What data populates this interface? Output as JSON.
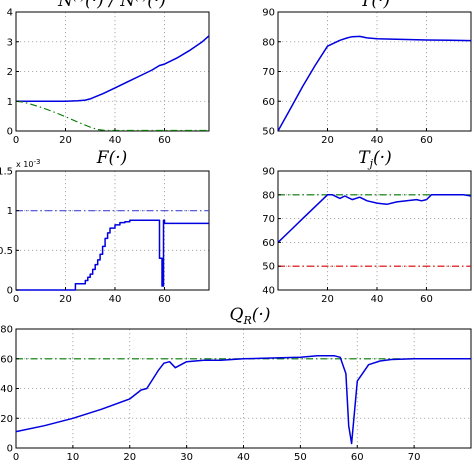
{
  "chart_data": [
    {
      "id": "p1",
      "type": "line",
      "title": "N^{(·)}(·)/N^{(·)}(·)",
      "xlim": [
        0,
        78
      ],
      "ylim": [
        0,
        4
      ],
      "xticks": [
        0,
        20,
        40,
        60
      ],
      "yticks": [
        0,
        1,
        2,
        3,
        4
      ],
      "xticklabels": [
        "0",
        "20",
        "40",
        "60"
      ],
      "yticklabels": [
        "0",
        "1",
        "2",
        "3",
        "4"
      ],
      "grid": true,
      "series": [
        {
          "color": "#0000e0",
          "style": "solid",
          "x": [
            0,
            5,
            10,
            15,
            20,
            25,
            28,
            30,
            32,
            35,
            40,
            50,
            55,
            58,
            60,
            65,
            70,
            75,
            78
          ],
          "y": [
            1.0,
            1.0,
            1.0,
            1.0,
            1.0,
            1.02,
            1.04,
            1.08,
            1.15,
            1.25,
            1.45,
            1.85,
            2.05,
            2.2,
            2.25,
            2.45,
            2.7,
            2.98,
            3.2
          ]
        },
        {
          "color": "#007a00",
          "style": "dashdot",
          "x": [
            0,
            3,
            6,
            10,
            15,
            20,
            25,
            30,
            33,
            36,
            40,
            50,
            60,
            70,
            78
          ],
          "y": [
            1.0,
            0.97,
            0.9,
            0.8,
            0.65,
            0.48,
            0.3,
            0.13,
            0.05,
            0.02,
            0.02,
            0.02,
            0.02,
            0.02,
            0.02
          ]
        }
      ]
    },
    {
      "id": "p2",
      "type": "line",
      "title": "T(·)",
      "xlim": [
        0,
        78
      ],
      "ylim": [
        50,
        90
      ],
      "xticks": [
        20,
        40,
        60
      ],
      "yticks": [
        50,
        60,
        70,
        80,
        90
      ],
      "xticklabels": [
        "20",
        "40",
        "60"
      ],
      "yticklabels": [
        "50",
        "60",
        "70",
        "80",
        "90"
      ],
      "grid": true,
      "series": [
        {
          "color": "#0000e0",
          "style": "solid",
          "x": [
            0,
            5,
            10,
            15,
            20,
            25,
            28,
            30,
            33,
            36,
            40,
            50,
            60,
            70,
            78
          ],
          "y": [
            50,
            57.5,
            65,
            72,
            78.5,
            80.5,
            81.3,
            81.7,
            81.8,
            81.3,
            81.0,
            80.8,
            80.6,
            80.5,
            80.4
          ]
        }
      ]
    },
    {
      "id": "p3",
      "type": "line",
      "title": "F(·)",
      "exponent_label": "x 10^-3",
      "xlim": [
        0,
        78
      ],
      "ylim": [
        0,
        1.5
      ],
      "xticks": [
        0,
        20,
        40,
        60
      ],
      "yticks": [
        0,
        0.5,
        1,
        1.5
      ],
      "xticklabels": [
        "0",
        "20",
        "40",
        "60"
      ],
      "yticklabels": [
        "0",
        "0.5",
        "1",
        "1.5"
      ],
      "grid": true,
      "series": [
        {
          "color": "#4b4bd6",
          "style": "dashdot",
          "x": [
            0,
            78
          ],
          "y": [
            1.0,
            1.0
          ]
        },
        {
          "color": "#0000e0",
          "style": "solid",
          "x": [
            0,
            24,
            24,
            28,
            28,
            29,
            29,
            30,
            30,
            31,
            31,
            32,
            32,
            33,
            33,
            34,
            34,
            35,
            35,
            36,
            36,
            37,
            37,
            38,
            38,
            40,
            40,
            42,
            42,
            44,
            44,
            46,
            46,
            58,
            58,
            59,
            59,
            59.6,
            59.6,
            60,
            60,
            62,
            62,
            78
          ],
          "y": [
            0,
            0,
            0.08,
            0.08,
            0.12,
            0.12,
            0.16,
            0.16,
            0.2,
            0.2,
            0.26,
            0.26,
            0.32,
            0.32,
            0.38,
            0.38,
            0.45,
            0.45,
            0.55,
            0.55,
            0.65,
            0.65,
            0.72,
            0.72,
            0.78,
            0.78,
            0.82,
            0.82,
            0.85,
            0.85,
            0.86,
            0.86,
            0.88,
            0.88,
            0.4,
            0.4,
            0.05,
            0.05,
            0.88,
            0.88,
            0.84,
            0.84,
            0.84,
            0.84
          ]
        }
      ]
    },
    {
      "id": "p4",
      "type": "line",
      "title": "T_j(·)",
      "xlim": [
        0,
        78
      ],
      "ylim": [
        40,
        90
      ],
      "xticks": [
        20,
        40,
        60
      ],
      "yticks": [
        40,
        50,
        60,
        70,
        80,
        90
      ],
      "xticklabels": [
        "20",
        "40",
        "60"
      ],
      "yticklabels": [
        "40",
        "50",
        "60",
        "70",
        "80",
        "90"
      ],
      "grid": true,
      "series": [
        {
          "color": "#007a00",
          "style": "dashdot",
          "x": [
            0,
            78
          ],
          "y": [
            80,
            80
          ]
        },
        {
          "color": "#e00000",
          "style": "dashdot",
          "x": [
            0,
            78
          ],
          "y": [
            50,
            50
          ]
        },
        {
          "color": "#0000e0",
          "style": "solid",
          "x": [
            0,
            5,
            10,
            15,
            20,
            22,
            25,
            27,
            30,
            33,
            36,
            40,
            44,
            48,
            52,
            56,
            58,
            60,
            62,
            66,
            70,
            75,
            78
          ],
          "y": [
            60,
            65,
            70,
            75,
            80,
            80,
            78.5,
            79.5,
            78,
            79,
            77.5,
            76.5,
            76,
            77,
            77.5,
            78,
            77.5,
            78,
            80,
            80,
            80,
            80,
            79.5
          ]
        }
      ]
    },
    {
      "id": "p5",
      "type": "line",
      "title": "Q_R(·)",
      "xlim": [
        0,
        80
      ],
      "ylim": [
        0,
        80
      ],
      "xticks": [
        0,
        10,
        20,
        30,
        40,
        50,
        60,
        70
      ],
      "yticks": [
        0,
        20,
        40,
        60,
        80
      ],
      "xticklabels": [
        "0",
        "10",
        "20",
        "30",
        "40",
        "50",
        "60",
        "70"
      ],
      "yticklabels": [
        "0",
        "20",
        "40",
        "60",
        "80"
      ],
      "grid": true,
      "series": [
        {
          "color": "#007a00",
          "style": "dashdot",
          "x": [
            0,
            80
          ],
          "y": [
            60,
            60
          ]
        },
        {
          "color": "#0000e0",
          "style": "solid",
          "x": [
            0,
            5,
            10,
            15,
            20,
            22,
            23,
            24,
            25,
            26,
            27,
            28,
            30,
            33,
            36,
            40,
            45,
            50,
            53,
            56,
            57,
            58,
            58.5,
            59,
            60,
            62,
            64,
            66,
            70,
            75,
            80
          ],
          "y": [
            11,
            15,
            20,
            26,
            33,
            39,
            40,
            46,
            52,
            57,
            58,
            54,
            58,
            59,
            59,
            60,
            60.5,
            61,
            62,
            62,
            61,
            50,
            15,
            3,
            45,
            56,
            58.5,
            59.5,
            60,
            60,
            60
          ]
        }
      ]
    }
  ]
}
